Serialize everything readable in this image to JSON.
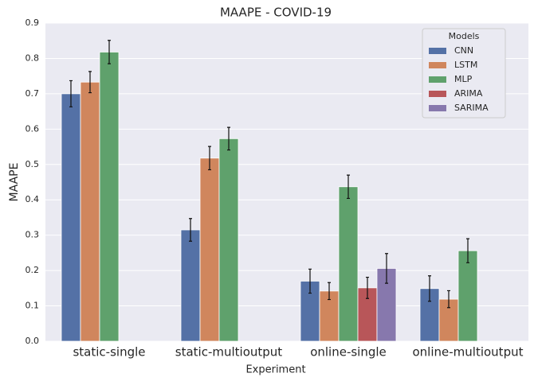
{
  "chart_data": {
    "type": "bar",
    "title": "MAAPE - COVID-19",
    "x_label": "Experiment",
    "y_label": "MAAPE",
    "categories": [
      "static-single",
      "static-multioutput",
      "online-single",
      "online-multioutput"
    ],
    "series": [
      {
        "name": "CNN",
        "color": "#5471a6",
        "values": [
          0.7,
          0.315,
          0.17,
          0.149
        ],
        "errors": [
          0.037,
          0.032,
          0.034,
          0.036
        ]
      },
      {
        "name": "LSTM",
        "color": "#d0865d",
        "values": [
          0.733,
          0.518,
          0.142,
          0.119
        ],
        "errors": [
          0.03,
          0.033,
          0.024,
          0.024
        ]
      },
      {
        "name": "MLP",
        "color": "#5fa16c",
        "values": [
          0.818,
          0.573,
          0.437,
          0.256
        ],
        "errors": [
          0.033,
          0.032,
          0.033,
          0.034
        ]
      },
      {
        "name": "ARIMA",
        "color": "#b85659",
        "values": [
          null,
          null,
          0.151,
          null
        ],
        "errors": [
          null,
          null,
          0.03,
          null
        ]
      },
      {
        "name": "SARIMA",
        "color": "#8778ad",
        "values": [
          null,
          null,
          0.206,
          null
        ],
        "errors": [
          null,
          null,
          0.042,
          null
        ]
      }
    ],
    "legend_title": "Models",
    "legend": "upper right",
    "ylim": [
      0,
      0.9
    ],
    "yticks": [
      {
        "value": 0,
        "label": "0.0"
      },
      0.1,
      0.2,
      0.3,
      0.4,
      0.5,
      0.6,
      0.7,
      0.8,
      0.9
    ],
    "grid": true
  }
}
